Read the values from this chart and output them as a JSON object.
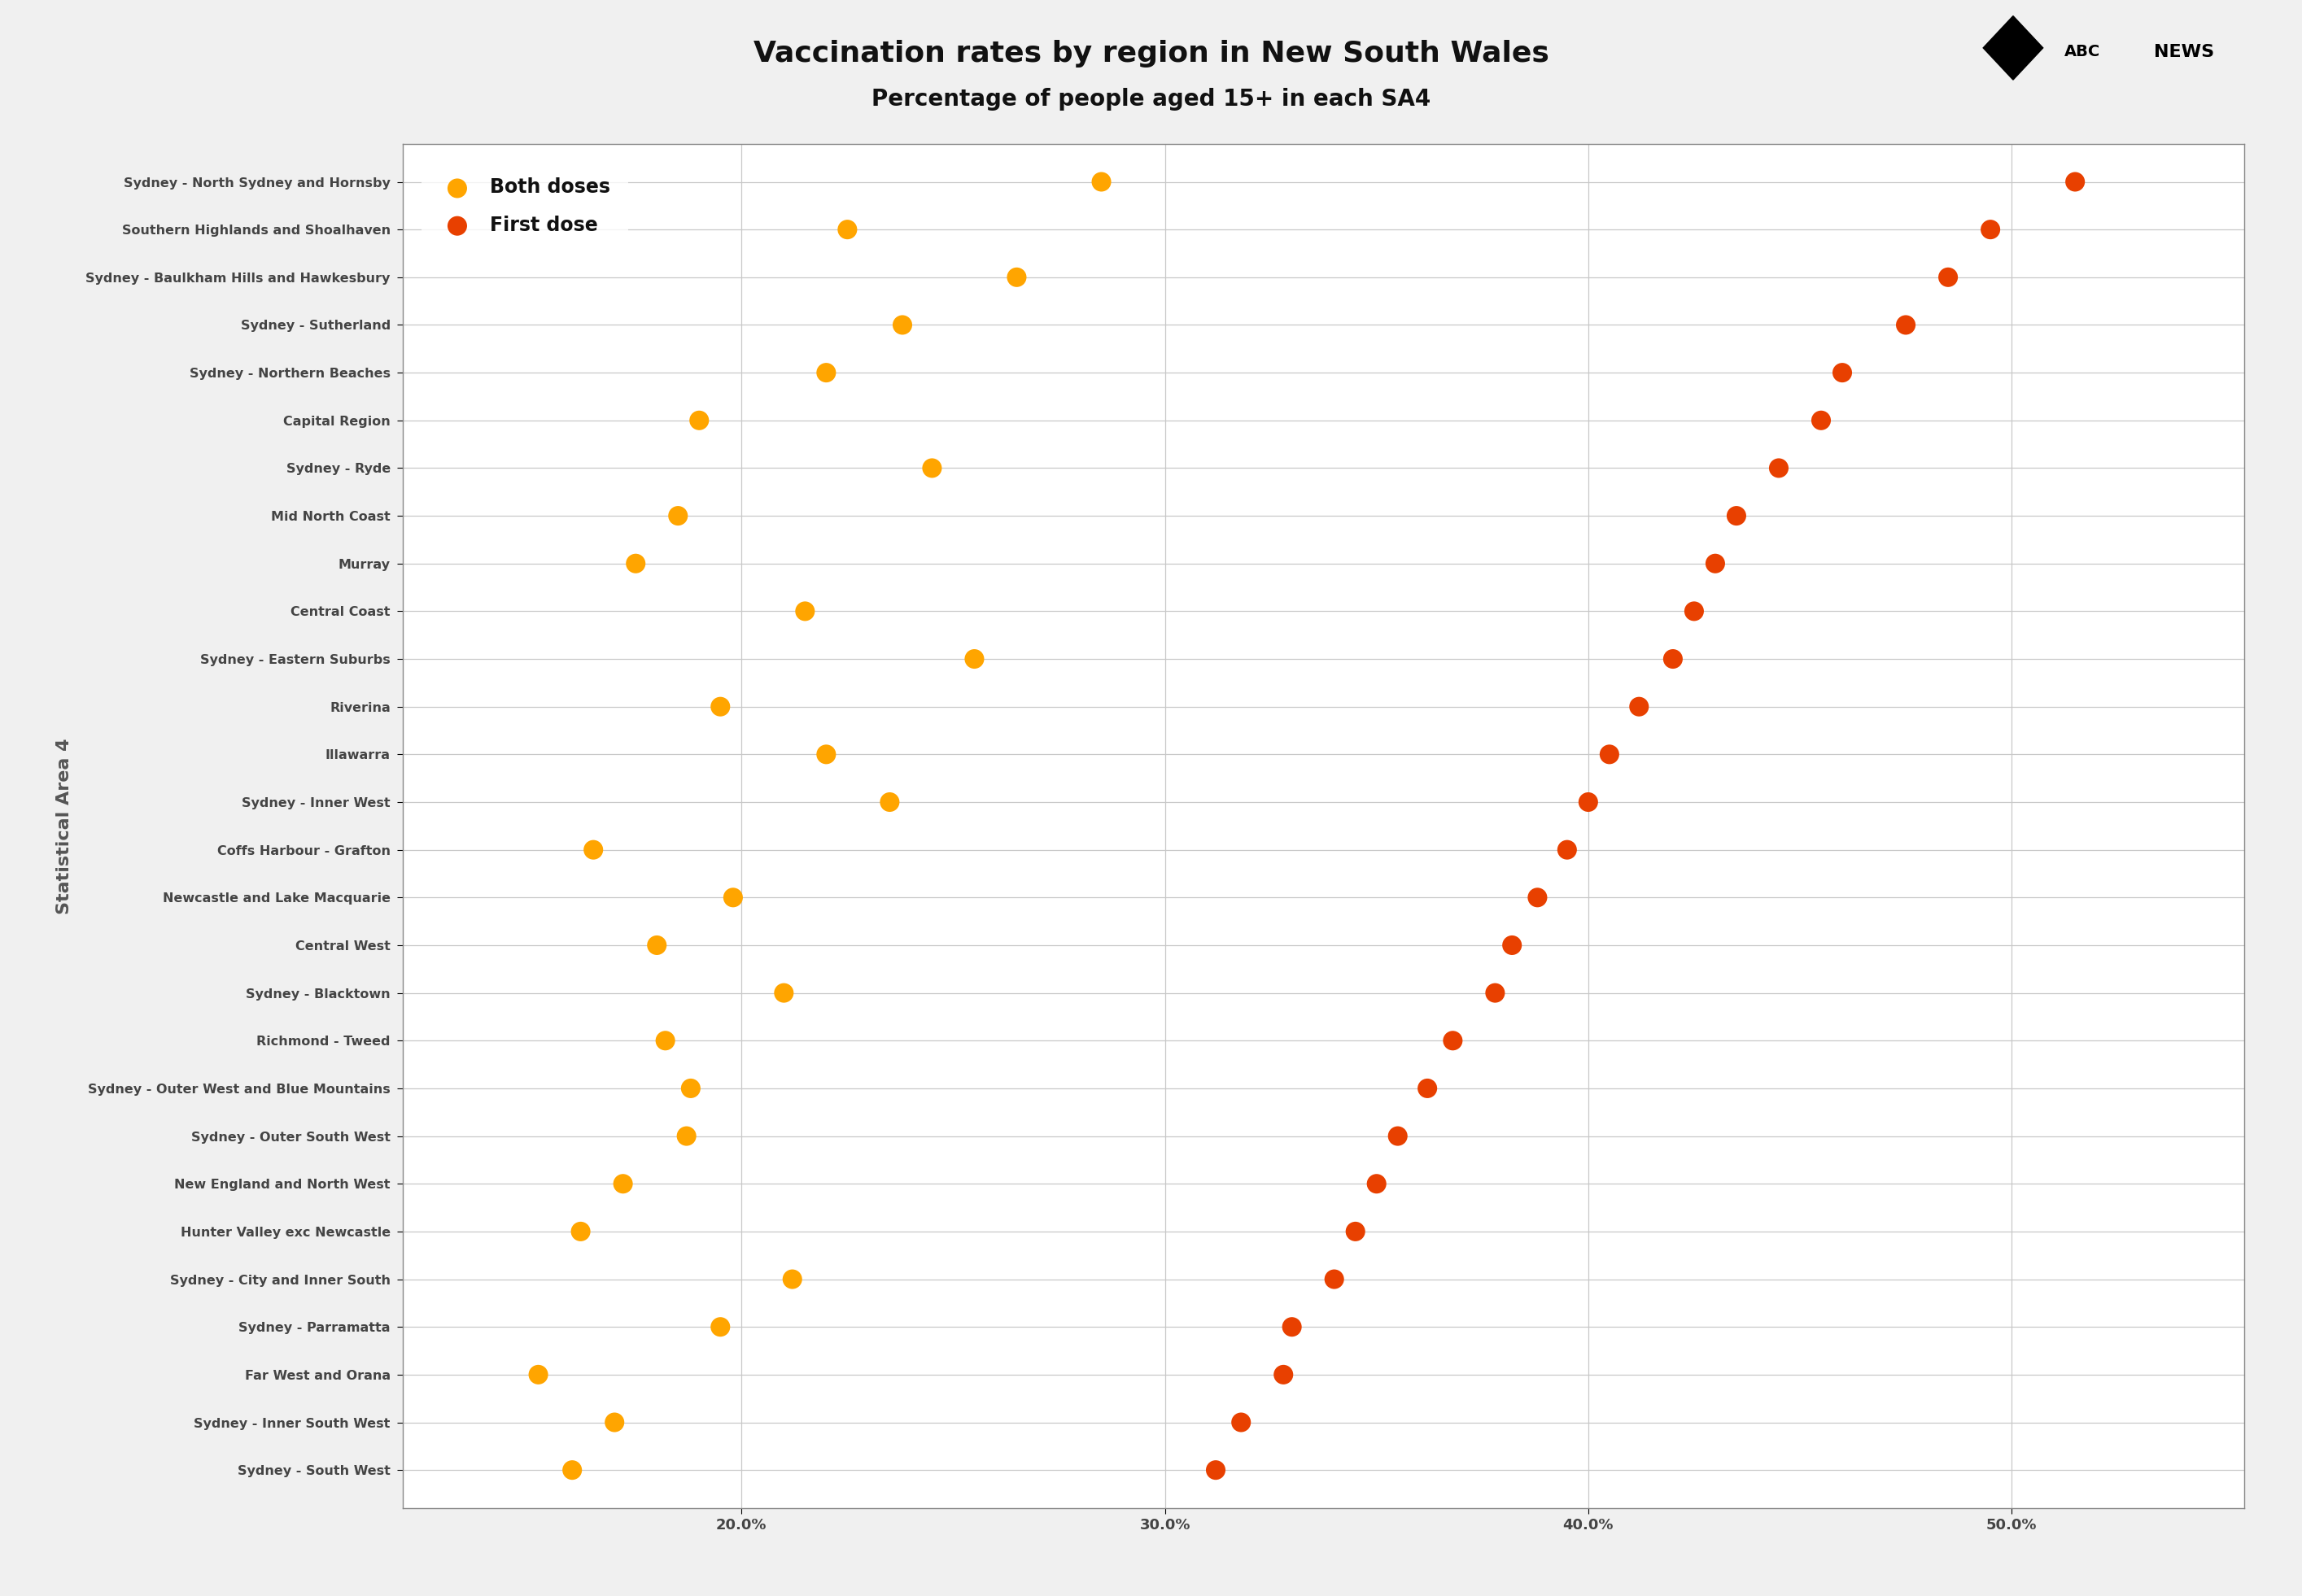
{
  "title": "Vaccination rates by region in New South Wales",
  "subtitle": "Percentage of people aged 15+ in each SA4",
  "ylabel": "Statistical Area 4",
  "background_color": "#f0f0f0",
  "plot_bg_color": "#ffffff",
  "grid_color": "#c8c8c8",
  "regions": [
    "Sydney - North Sydney and Hornsby",
    "Southern Highlands and Shoalhaven",
    "Sydney - Baulkham Hills and Hawkesbury",
    "Sydney - Sutherland",
    "Sydney - Northern Beaches",
    "Capital Region",
    "Sydney - Ryde",
    "Mid North Coast",
    "Murray",
    "Central Coast",
    "Sydney - Eastern Suburbs",
    "Riverina",
    "Illawarra",
    "Sydney - Inner West",
    "Coffs Harbour - Grafton",
    "Newcastle and Lake Macquarie",
    "Central West",
    "Sydney - Blacktown",
    "Richmond - Tweed",
    "Sydney - Outer West and Blue Mountains",
    "Sydney - Outer South West",
    "New England and North West",
    "Hunter Valley exc Newcastle",
    "Sydney - City and Inner South",
    "Sydney - Parramatta",
    "Far West and Orana",
    "Sydney - Inner South West",
    "Sydney - South West"
  ],
  "both_doses": [
    28.5,
    22.5,
    26.5,
    23.8,
    22.0,
    19.0,
    24.5,
    18.5,
    17.5,
    21.5,
    25.5,
    19.5,
    22.0,
    23.5,
    16.5,
    19.8,
    18.0,
    21.0,
    18.2,
    18.8,
    18.7,
    17.2,
    16.2,
    21.2,
    19.5,
    15.2,
    17.0,
    16.0
  ],
  "first_dose": [
    51.5,
    49.5,
    48.5,
    47.5,
    46.0,
    45.5,
    44.5,
    43.5,
    43.0,
    42.5,
    42.0,
    41.2,
    40.5,
    40.0,
    39.5,
    38.8,
    38.2,
    37.8,
    36.8,
    36.2,
    35.5,
    35.0,
    34.5,
    34.0,
    33.0,
    32.8,
    31.8,
    31.2
  ],
  "both_color": "#FFA500",
  "first_color": "#E84000",
  "dot_size": 300,
  "xlim_min": 0.12,
  "xlim_max": 0.555,
  "xticks": [
    0.2,
    0.3,
    0.4,
    0.5
  ],
  "xtick_labels": [
    "20.0%",
    "30.0%",
    "40.0%",
    "50.0%"
  ],
  "legend_both": "Both doses",
  "legend_first": "First dose"
}
